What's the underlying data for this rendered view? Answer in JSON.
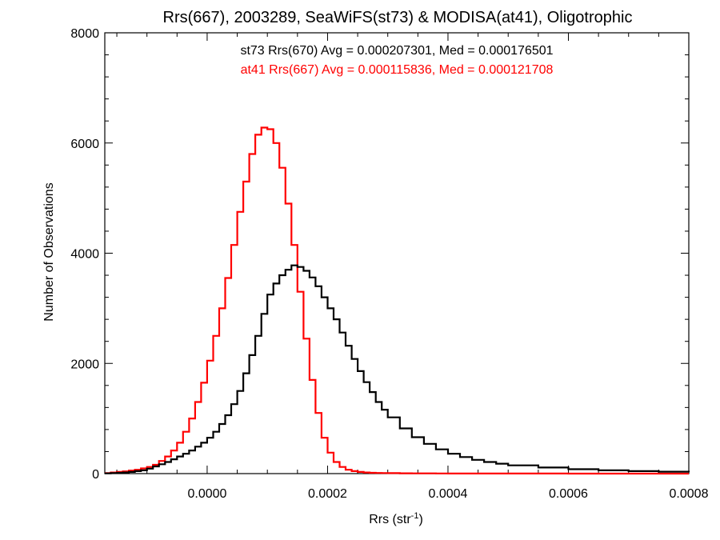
{
  "chart_data": {
    "type": "line",
    "step": true,
    "title": "Rrs(667), 2003289, SeaWiFS(st73) & MODISA(at41), Oligotrophic",
    "xlabel": "Rrs (str",
    "xlabel_sup": "-1",
    "xlabel_close": ")",
    "ylabel": "Number of Observations",
    "xlim": [
      -0.00017,
      0.0008
    ],
    "ylim": [
      0,
      8000
    ],
    "x_ticks": [
      {
        "value": 0.0,
        "label": "0.0000"
      },
      {
        "value": 0.0002,
        "label": "0.0002"
      },
      {
        "value": 0.0004,
        "label": "0.0004"
      },
      {
        "value": 0.0006,
        "label": "0.0006"
      },
      {
        "value": 0.0008,
        "label": "0.0008"
      }
    ],
    "y_ticks": [
      {
        "value": 0,
        "label": "0"
      },
      {
        "value": 2000,
        "label": "2000"
      },
      {
        "value": 4000,
        "label": "4000"
      },
      {
        "value": 6000,
        "label": "6000"
      },
      {
        "value": 8000,
        "label": "8000"
      }
    ],
    "annotations": [
      {
        "text": "st73 Rrs(670) Avg = 0.000207301, Med = 0.000176501",
        "color": "#000000"
      },
      {
        "text": "at41 Rrs(667) Avg = 0.000115836, Med = 0.000121708",
        "color": "#ff0000"
      }
    ],
    "series": [
      {
        "color": "#ff0000",
        "x": [
          -0.00017,
          -0.00016,
          -0.00015,
          -0.00014,
          -0.00013,
          -0.00012,
          -0.00011,
          -0.0001,
          -9e-05,
          -8e-05,
          -7e-05,
          -6e-05,
          -5e-05,
          -4e-05,
          -3e-05,
          -2e-05,
          -1e-05,
          0.0,
          1e-05,
          2e-05,
          3e-05,
          4e-05,
          5e-05,
          6e-05,
          7e-05,
          8e-05,
          9e-05,
          0.0001,
          0.00011,
          0.00012,
          0.00013,
          0.00014,
          0.00015,
          0.00016,
          0.00017,
          0.00018,
          0.00019,
          0.0002,
          0.00021,
          0.00022,
          0.00023,
          0.00024,
          0.00025,
          0.00026,
          0.00027,
          0.00028,
          0.00029,
          0.0003,
          0.00032,
          0.00034,
          0.00036,
          0.00038,
          0.0004,
          0.00045,
          0.0005,
          0.0006,
          0.0007,
          0.0008
        ],
        "y": [
          10,
          20,
          30,
          40,
          55,
          70,
          95,
          120,
          160,
          230,
          310,
          420,
          560,
          760,
          1000,
          1300,
          1650,
          2050,
          2500,
          3000,
          3550,
          4150,
          4750,
          5300,
          5800,
          6150,
          6280,
          6250,
          6000,
          5550,
          4900,
          4150,
          3300,
          2450,
          1700,
          1100,
          650,
          380,
          210,
          120,
          70,
          45,
          30,
          20,
          15,
          12,
          10,
          8,
          6,
          5,
          4,
          3,
          2,
          2,
          1,
          0,
          0,
          0
        ]
      },
      {
        "color": "#000000",
        "x": [
          -0.00017,
          -0.00016,
          -0.00015,
          -0.00014,
          -0.00013,
          -0.00012,
          -0.00011,
          -0.0001,
          -9e-05,
          -8e-05,
          -7e-05,
          -6e-05,
          -5e-05,
          -4e-05,
          -3e-05,
          -2e-05,
          -1e-05,
          0.0,
          1e-05,
          2e-05,
          3e-05,
          4e-05,
          5e-05,
          6e-05,
          7e-05,
          8e-05,
          9e-05,
          0.0001,
          0.00011,
          0.00012,
          0.00013,
          0.00014,
          0.00015,
          0.00016,
          0.00017,
          0.00018,
          0.00019,
          0.0002,
          0.00021,
          0.00022,
          0.00023,
          0.00024,
          0.00025,
          0.00026,
          0.00027,
          0.00028,
          0.00029,
          0.0003,
          0.00032,
          0.00034,
          0.00036,
          0.00038,
          0.0004,
          0.00042,
          0.00044,
          0.00046,
          0.00048,
          0.0005,
          0.00055,
          0.0006,
          0.00065,
          0.0007,
          0.00075,
          0.0008
        ],
        "y": [
          5,
          10,
          15,
          20,
          30,
          45,
          60,
          90,
          130,
          170,
          210,
          260,
          310,
          360,
          420,
          490,
          560,
          650,
          760,
          900,
          1060,
          1260,
          1500,
          1820,
          2150,
          2500,
          2900,
          3250,
          3450,
          3600,
          3700,
          3780,
          3750,
          3680,
          3560,
          3400,
          3200,
          3000,
          2800,
          2560,
          2320,
          2080,
          1860,
          1660,
          1480,
          1300,
          1160,
          1020,
          820,
          660,
          540,
          440,
          360,
          300,
          250,
          210,
          180,
          150,
          110,
          80,
          60,
          45,
          35,
          25
        ]
      }
    ]
  }
}
